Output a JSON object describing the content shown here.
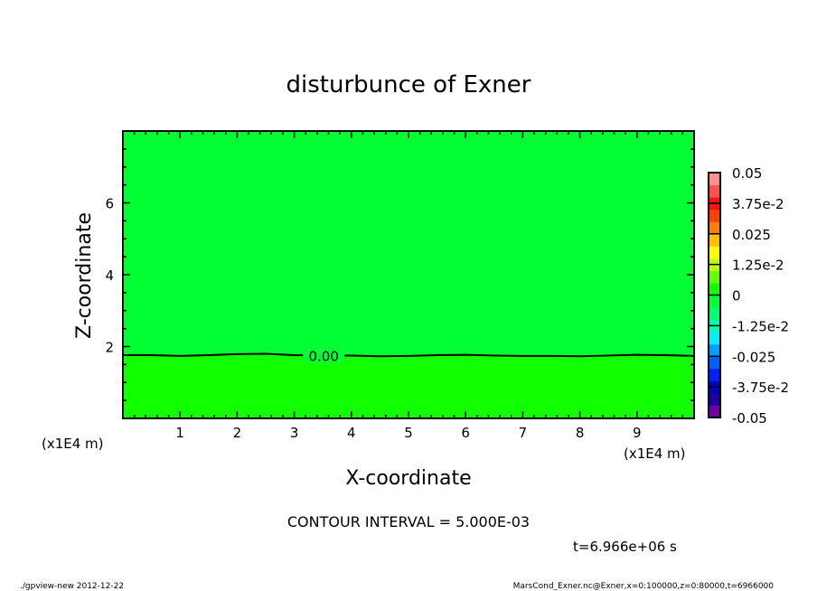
{
  "chart_data": {
    "type": "heatmap",
    "title": "disturbunce of Exner",
    "xlabel": "X-coordinate",
    "ylabel": "Z-coordinate",
    "x_unit_label": "(x1E4 m)",
    "xlim": [
      0,
      10
    ],
    "ylim": [
      0,
      8
    ],
    "x_ticks": [
      1,
      2,
      3,
      4,
      5,
      6,
      7,
      8,
      9
    ],
    "y_ticks": [
      2,
      4,
      6
    ],
    "contour_interval_label": "CONTOUR INTERVAL = 5.000E-03",
    "time_label": "t=6.966e+06 s",
    "contour": {
      "label": "0.00",
      "level": 0,
      "x": [
        0,
        0.5,
        1,
        1.5,
        2,
        2.5,
        3,
        3.5,
        4,
        4.5,
        5,
        5.5,
        6,
        6.5,
        7,
        7.5,
        8,
        8.5,
        9,
        9.5,
        10
      ],
      "z": [
        1.76,
        1.76,
        1.74,
        1.76,
        1.79,
        1.8,
        1.76,
        1.75,
        1.75,
        1.73,
        1.74,
        1.76,
        1.77,
        1.75,
        1.74,
        1.74,
        1.73,
        1.75,
        1.77,
        1.76,
        1.74
      ]
    },
    "regions": [
      {
        "range": "below contour",
        "color": "#11ff00"
      },
      {
        "range": "above contour",
        "color": "#00ff33"
      }
    ],
    "colorbar": {
      "min": -0.05,
      "max": 0.05,
      "tick_labels": [
        "0.05",
        "3.75e-2",
        "0.025",
        "1.25e-2",
        "0",
        "-1.25e-2",
        "-0.025",
        "-3.75e-2",
        "-0.05"
      ],
      "colors_low_to_high": [
        "#7000a0",
        "#2000a0",
        "#0000c0",
        "#0020ff",
        "#0060ff",
        "#00a0ff",
        "#00f0ff",
        "#00ffb0",
        "#00ff70",
        "#00ff33",
        "#11ff00",
        "#66ff00",
        "#bbff00",
        "#ffff00",
        "#ffc000",
        "#ff8000",
        "#ff4000",
        "#ff1010",
        "#ff5050",
        "#ff9090"
      ]
    }
  },
  "footer": {
    "left": "./gpview-new  2012-12-22",
    "right": "MarsCond_Exner.nc@Exner,x=0:100000,z=0:80000,t=6966000"
  }
}
